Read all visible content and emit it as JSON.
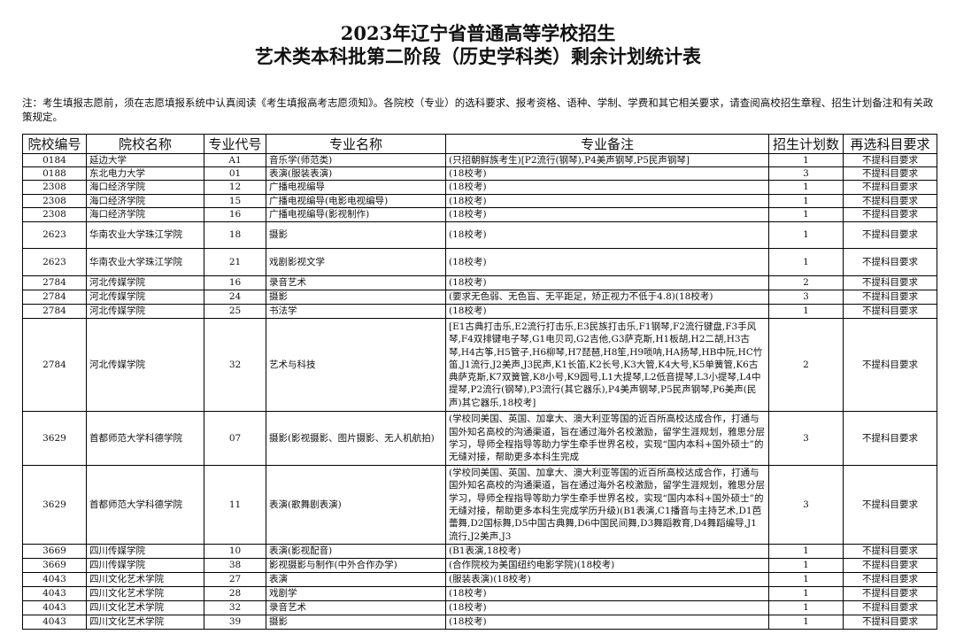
{
  "title": [
    "2023年辽宁省普通高等学校招生",
    "艺术类本科批第二阶段（历史学科类）剩余计划统计表"
  ],
  "note": "注：考生填报志愿前，须在志愿填报系统中认真阅读《考生填报高考志愿须知》。各院校（专业）的选科要求、报考资格、语种、学制、学费和其它相关要求，请查阅高校招生章程、招生计划备注和有关政策规定。",
  "headers": [
    "院校编号",
    "院校名称",
    "专业代号",
    "专业名称",
    "专业备注",
    "招生计划数",
    "再选科目要求"
  ],
  "rows": [
    [
      "0184",
      "延边大学",
      "A1",
      "音乐学(师范类)",
      "(只招朝鲜族考生)[P2流行(钢琴),P4美声钢琴,P5民声钢琴]",
      "1",
      "不提科目要求"
    ],
    [
      "0188",
      "东北电力大学",
      "01",
      "表演(服装表演)",
      "(18校考)",
      "3",
      "不提科目要求"
    ],
    [
      "2308",
      "海口经济学院",
      "12",
      "广播电视编导",
      "(18校考)",
      "1",
      "不提科目要求"
    ],
    [
      "2308",
      "海口经济学院",
      "15",
      "广播电视编导(电影电视编导)",
      "(18校考)",
      "1",
      "不提科目要求"
    ],
    [
      "2308",
      "海口经济学院",
      "16",
      "广播电视编导(影视制作)",
      "(18校考)",
      "1",
      "不提科目要求"
    ],
    [
      "2623",
      "华南农业大学珠江学院",
      "18",
      "摄影",
      "(18校考)",
      "1",
      "不提科目要求"
    ],
    [
      "2623",
      "华南农业大学珠江学院",
      "21",
      "戏剧影视文学",
      "(18校考)",
      "1",
      "不提科目要求"
    ],
    [
      "2784",
      "河北传媒学院",
      "16",
      "录音艺术",
      "(18校考)",
      "2",
      "不提科目要求"
    ],
    [
      "2784",
      "河北传媒学院",
      "24",
      "摄影",
      "(要求无色弱、无色盲、无平距足，矫正视力不低于4.8)(18校考)",
      "3",
      "不提科目要求"
    ],
    [
      "2784",
      "河北传媒学院",
      "25",
      "书法学",
      "(18校考)",
      "1",
      "不提科目要求"
    ],
    [
      "2784",
      "河北传媒学院",
      "32",
      "艺术与科技",
      "[E1古典打击乐,E2流行打击乐,E3民族打击乐,F1钢琴,F2流行键盘,F3手风琴,F4双排键电子琴,G1电贝司,G2吉他,G3萨克斯,H1板胡,H2二胡,H3古琴,H4古筝,H5管子,H6柳琴,H7琵琶,H8笙,H9唢呐,HA扬琴,HB中阮,HC竹笛,J1流行,J2美声,J3民声,K1长笛,K2长号,K3大管,K4大号,K5单簧管,K6古典萨克斯,K7双簧管,K8小号,K9圆号,L1大提琴,L2低音提琴,L3小提琴,L4中提琴,P2流行(钢琴),P3流行(其它器乐),P4美声钢琴,P5民声钢琴,P6美声(民声)其它器乐,18校考]",
      "2",
      "不提科目要求"
    ],
    [
      "3629",
      "首都师范大学科德学院",
      "07",
      "摄影(影视摄影、图片摄影、无人机航拍)",
      "(学校同美国、英国、加拿大、澳大利亚等国的近百所高校达成合作，打通与国外知名高校的沟通渠道，旨在通过海外名校激励，留学生涯规划，雅思分层学习，导师全程指导等助力学生牵手世界名校，实现“国内本科+国外硕士”的无缝对接，帮助更多本科生完成",
      "3",
      "不提科目要求"
    ],
    [
      "3629",
      "首都师范大学科德学院",
      "11",
      "表演(歌舞剧表演)",
      "(学校同美国、英国、加拿大、澳大利亚等国的近百所高校达成合作，打通与国外知名高校的沟通渠道，旨在通过海外名校激励，留学生涯规划，雅思分层学习，导师全程指导等助力学生牵手世界名校，实现“国内本科+国外硕士”的无缝对接，帮助更多本科生完成学历升级)(B1表演,C1播音与主持艺术,D1芭蕾舞,D2国标舞,D5中国古典舞,D6中国民间舞,D3舞蹈教育,D4舞蹈编导,J1流行,J2美声,J3",
      "3",
      "不提科目要求"
    ],
    [
      "3669",
      "四川传媒学院",
      "10",
      "表演(影视配音)",
      "(B1表演,18校考)",
      "1",
      "不提科目要求"
    ],
    [
      "3669",
      "四川传媒学院",
      "38",
      "影视摄影与制作(中外合作办学)",
      "(合作院校为美国纽约电影学院)(18校考)",
      "1",
      "不提科目要求"
    ],
    [
      "4043",
      "四川文化艺术学院",
      "27",
      "表演",
      "(服装表演)(18校考)",
      "1",
      "不提科目要求"
    ],
    [
      "4043",
      "四川文化艺术学院",
      "28",
      "戏剧学",
      "(18校考)",
      "1",
      "不提科目要求"
    ],
    [
      "4043",
      "四川文化艺术学院",
      "32",
      "录音艺术",
      "(18校考)",
      "1",
      "不提科目要求"
    ],
    [
      "4043",
      "四川文化艺术学院",
      "39",
      "摄影",
      "(18校考)",
      "1",
      "不提科目要求"
    ]
  ]
}
